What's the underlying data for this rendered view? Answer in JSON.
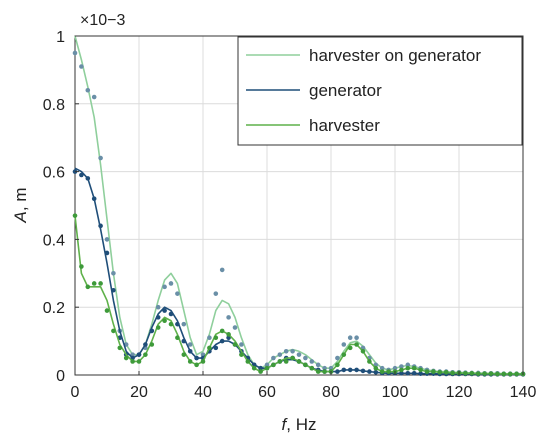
{
  "chart_data": {
    "type": "line",
    "xlabel_var": "f",
    "xlabel_unit": ", Hz",
    "ylabel_var": "A",
    "ylabel_unit": ", m",
    "y_exponent": "×10−3",
    "xlim": [
      0,
      140
    ],
    "ylim": [
      0,
      1
    ],
    "xticks": [
      0,
      20,
      40,
      60,
      80,
      100,
      120,
      140
    ],
    "xtick_labels": [
      "0",
      "20",
      "40",
      "60",
      "80",
      "100",
      "120",
      "140"
    ],
    "yticks": [
      0,
      0.2,
      0.4,
      0.6,
      0.8,
      1
    ],
    "ytick_labels": [
      "0",
      "0.2",
      "0.4",
      "0.6",
      "0.8",
      "1"
    ],
    "grid": true,
    "legend_position": "top-right",
    "series": [
      {
        "name": "harvester on generator",
        "color": "#8fcf9c",
        "marker_color": "#6a8fa7",
        "curve": {
          "x": [
            0,
            2,
            4,
            6,
            8,
            10,
            12,
            14,
            16,
            18,
            20,
            22,
            24,
            26,
            28,
            30,
            32,
            34,
            36,
            38,
            40,
            42,
            44,
            46,
            48,
            50,
            52,
            54,
            56,
            58,
            60,
            62,
            64,
            66,
            68,
            70,
            72,
            74,
            76,
            78,
            80,
            82,
            84,
            86,
            88,
            90,
            92,
            94,
            96,
            98,
            100,
            102,
            104,
            106,
            108,
            110,
            112,
            114,
            116,
            118,
            120,
            122,
            124,
            126,
            128,
            130,
            132,
            134,
            136,
            138,
            140
          ],
          "y": [
            1.0,
            0.93,
            0.85,
            0.76,
            0.62,
            0.46,
            0.3,
            0.17,
            0.09,
            0.06,
            0.06,
            0.09,
            0.15,
            0.22,
            0.28,
            0.3,
            0.27,
            0.19,
            0.11,
            0.06,
            0.07,
            0.12,
            0.19,
            0.22,
            0.21,
            0.17,
            0.11,
            0.06,
            0.03,
            0.02,
            0.03,
            0.05,
            0.06,
            0.07,
            0.075,
            0.07,
            0.06,
            0.045,
            0.03,
            0.02,
            0.02,
            0.04,
            0.07,
            0.095,
            0.1,
            0.085,
            0.06,
            0.035,
            0.02,
            0.015,
            0.02,
            0.025,
            0.028,
            0.025,
            0.02,
            0.015,
            0.012,
            0.01,
            0.01,
            0.008,
            0.008,
            0.007,
            0.006,
            0.006,
            0.005,
            0.005,
            0.005,
            0.004,
            0.004,
            0.004,
            0.004
          ]
        },
        "points": {
          "x": [
            0,
            2,
            4,
            6,
            8,
            10,
            12,
            14,
            16,
            18,
            20,
            22,
            24,
            26,
            28,
            30,
            32,
            34,
            36,
            38,
            40,
            42,
            44,
            46,
            48,
            50,
            52,
            54,
            56,
            58,
            60,
            62,
            64,
            66,
            68,
            70,
            72,
            74,
            76,
            78,
            80,
            82,
            84,
            86,
            88,
            90,
            92,
            94,
            96,
            98,
            100,
            102,
            104,
            106,
            108,
            110,
            112,
            114,
            116,
            118,
            120,
            122,
            124,
            126,
            128,
            130,
            132,
            134,
            136,
            138,
            140
          ],
          "y": [
            0.95,
            0.91,
            0.84,
            0.82,
            0.64,
            0.4,
            0.3,
            0.13,
            0.09,
            0.06,
            0.06,
            0.08,
            0.13,
            0.2,
            0.26,
            0.27,
            0.24,
            0.15,
            0.09,
            0.05,
            0.06,
            0.11,
            0.24,
            0.31,
            0.17,
            0.14,
            0.09,
            0.05,
            0.03,
            0.02,
            0.03,
            0.05,
            0.06,
            0.07,
            0.07,
            0.06,
            0.05,
            0.04,
            0.03,
            0.02,
            0.02,
            0.05,
            0.09,
            0.11,
            0.11,
            0.08,
            0.05,
            0.03,
            0.02,
            0.015,
            0.02,
            0.025,
            0.03,
            0.025,
            0.02,
            0.015,
            0.012,
            0.01,
            0.01,
            0.008,
            0.008,
            0.007,
            0.006,
            0.006,
            0.005,
            0.005,
            0.005,
            0.004,
            0.004,
            0.004,
            0.004
          ]
        }
      },
      {
        "name": "generator",
        "color": "#1f4e79",
        "marker_color": "#1f4e79",
        "curve": {
          "x": [
            0,
            2,
            4,
            6,
            8,
            10,
            12,
            14,
            16,
            18,
            20,
            22,
            24,
            26,
            28,
            30,
            32,
            34,
            36,
            38,
            40,
            42,
            44,
            46,
            48,
            50,
            52,
            54,
            56,
            58,
            60,
            62,
            64,
            66,
            68,
            70,
            72,
            74,
            76,
            78,
            80,
            82,
            84,
            86,
            88,
            90,
            92,
            94,
            96,
            98,
            100,
            102,
            104,
            106,
            108,
            110,
            112,
            114,
            116,
            118,
            120,
            122,
            124,
            126,
            128,
            130,
            132,
            134,
            136,
            138,
            140
          ],
          "y": [
            0.61,
            0.6,
            0.58,
            0.52,
            0.43,
            0.33,
            0.22,
            0.13,
            0.07,
            0.05,
            0.06,
            0.09,
            0.14,
            0.18,
            0.2,
            0.19,
            0.16,
            0.11,
            0.07,
            0.05,
            0.05,
            0.07,
            0.09,
            0.1,
            0.1,
            0.09,
            0.07,
            0.05,
            0.03,
            0.02,
            0.02,
            0.03,
            0.04,
            0.045,
            0.045,
            0.04,
            0.03,
            0.02,
            0.015,
            0.01,
            0.01,
            0.01,
            0.015,
            0.015,
            0.015,
            0.012,
            0.01,
            0.008,
            0.006,
            0.005,
            0.005,
            0.005,
            0.005,
            0.005,
            0.004,
            0.004,
            0.004,
            0.003,
            0.003,
            0.003,
            0.003,
            0.003,
            0.003,
            0.002,
            0.002,
            0.002,
            0.002,
            0.002,
            0.002,
            0.002,
            0.002
          ]
        },
        "points": {
          "x": [
            0,
            2,
            4,
            6,
            8,
            10,
            12,
            14,
            16,
            18,
            20,
            22,
            24,
            26,
            28,
            30,
            32,
            34,
            36,
            38,
            40,
            42,
            44,
            46,
            48,
            50,
            52,
            54,
            56,
            58,
            60,
            62,
            64,
            66,
            68,
            70,
            72,
            74,
            76,
            78,
            80,
            82,
            84,
            86,
            88,
            90,
            92,
            94,
            96,
            98,
            100,
            102,
            104,
            106,
            108,
            110,
            112,
            114,
            116,
            118,
            120,
            122,
            124,
            126,
            128,
            130,
            132,
            134,
            136,
            138,
            140
          ],
          "y": [
            0.6,
            0.59,
            0.58,
            0.52,
            0.44,
            0.36,
            0.25,
            0.11,
            0.06,
            0.05,
            0.06,
            0.09,
            0.13,
            0.17,
            0.19,
            0.18,
            0.15,
            0.1,
            0.07,
            0.05,
            0.05,
            0.07,
            0.08,
            0.1,
            0.11,
            0.09,
            0.07,
            0.05,
            0.03,
            0.02,
            0.02,
            0.03,
            0.04,
            0.05,
            0.05,
            0.04,
            0.03,
            0.02,
            0.015,
            0.01,
            0.01,
            0.01,
            0.015,
            0.015,
            0.015,
            0.012,
            0.01,
            0.008,
            0.006,
            0.005,
            0.005,
            0.005,
            0.005,
            0.005,
            0.004,
            0.004,
            0.004,
            0.003,
            0.003,
            0.003,
            0.003,
            0.003,
            0.003,
            0.002,
            0.002,
            0.002,
            0.002,
            0.002,
            0.002,
            0.002,
            0.002
          ]
        }
      },
      {
        "name": "harvester",
        "color": "#5fb14a",
        "marker_color": "#3e9a3a",
        "curve": {
          "x": [
            0,
            2,
            4,
            6,
            8,
            10,
            12,
            14,
            16,
            18,
            20,
            22,
            24,
            26,
            28,
            30,
            32,
            34,
            36,
            38,
            40,
            42,
            44,
            46,
            48,
            50,
            52,
            54,
            56,
            58,
            60,
            62,
            64,
            66,
            68,
            70,
            72,
            74,
            76,
            78,
            80,
            82,
            84,
            86,
            88,
            90,
            92,
            94,
            96,
            98,
            100,
            102,
            104,
            106,
            108,
            110,
            112,
            114,
            116,
            118,
            120,
            122,
            124,
            126,
            128,
            130,
            132,
            134,
            136,
            138,
            140
          ],
          "y": [
            0.47,
            0.3,
            0.26,
            0.26,
            0.26,
            0.22,
            0.15,
            0.09,
            0.06,
            0.04,
            0.04,
            0.06,
            0.1,
            0.15,
            0.17,
            0.16,
            0.12,
            0.07,
            0.04,
            0.03,
            0.04,
            0.08,
            0.12,
            0.13,
            0.12,
            0.1,
            0.07,
            0.04,
            0.02,
            0.01,
            0.02,
            0.03,
            0.04,
            0.05,
            0.05,
            0.04,
            0.03,
            0.02,
            0.01,
            0.01,
            0.01,
            0.03,
            0.06,
            0.09,
            0.09,
            0.07,
            0.04,
            0.02,
            0.01,
            0.01,
            0.01,
            0.015,
            0.02,
            0.02,
            0.015,
            0.01,
            0.01,
            0.008,
            0.008,
            0.006,
            0.006,
            0.005,
            0.005,
            0.004,
            0.004,
            0.004,
            0.003,
            0.003,
            0.003,
            0.003,
            0.003
          ]
        },
        "points": {
          "x": [
            0,
            2,
            4,
            6,
            8,
            10,
            12,
            14,
            16,
            18,
            20,
            22,
            24,
            26,
            28,
            30,
            32,
            34,
            36,
            38,
            40,
            42,
            44,
            46,
            48,
            50,
            52,
            54,
            56,
            58,
            60,
            62,
            64,
            66,
            68,
            70,
            72,
            74,
            76,
            78,
            80,
            82,
            84,
            86,
            88,
            90,
            92,
            94,
            96,
            98,
            100,
            102,
            104,
            106,
            108,
            110,
            112,
            114,
            116,
            118,
            120,
            122,
            124,
            126,
            128,
            130,
            132,
            134,
            136,
            138,
            140
          ],
          "y": [
            0.47,
            0.32,
            0.26,
            0.27,
            0.27,
            0.19,
            0.13,
            0.08,
            0.05,
            0.04,
            0.04,
            0.06,
            0.09,
            0.14,
            0.16,
            0.15,
            0.11,
            0.06,
            0.04,
            0.03,
            0.04,
            0.08,
            0.11,
            0.13,
            0.12,
            0.09,
            0.06,
            0.04,
            0.02,
            0.01,
            0.02,
            0.03,
            0.04,
            0.04,
            0.05,
            0.04,
            0.03,
            0.02,
            0.01,
            0.01,
            0.01,
            0.03,
            0.06,
            0.08,
            0.09,
            0.07,
            0.04,
            0.02,
            0.01,
            0.01,
            0.01,
            0.015,
            0.02,
            0.02,
            0.015,
            0.01,
            0.01,
            0.008,
            0.008,
            0.006,
            0.006,
            0.005,
            0.005,
            0.004,
            0.004,
            0.004,
            0.003,
            0.003,
            0.003,
            0.003,
            0.003
          ]
        }
      }
    ]
  }
}
